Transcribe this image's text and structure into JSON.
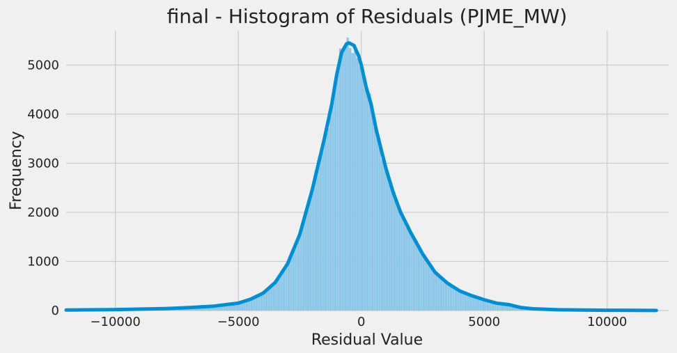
{
  "chart_data": {
    "type": "bar",
    "title": "final - Histogram of Residuals (PJME_MW)",
    "xlabel": "Residual Value",
    "ylabel": "Frequency",
    "xlim": [
      -12000,
      12500
    ],
    "ylim": [
      0,
      5700
    ],
    "xticks": [
      -10000,
      -5000,
      0,
      5000,
      10000
    ],
    "xtick_labels": [
      "−10000",
      "−5000",
      "0",
      "5000",
      "10000"
    ],
    "yticks": [
      0,
      1000,
      2000,
      3000,
      4000,
      5000
    ],
    "ytick_labels": [
      "0",
      "1000",
      "2000",
      "3000",
      "4000",
      "5000"
    ],
    "grid": true,
    "colors": {
      "bar": "#8ec8e8",
      "kde": "#008fd5",
      "grid": "#cbcbcb",
      "background": "#f0f0f0"
    },
    "kde_points": [
      [
        -12000,
        10
      ],
      [
        -10000,
        20
      ],
      [
        -8000,
        40
      ],
      [
        -7000,
        60
      ],
      [
        -6000,
        90
      ],
      [
        -5000,
        150
      ],
      [
        -4500,
        230
      ],
      [
        -4000,
        350
      ],
      [
        -3500,
        570
      ],
      [
        -3000,
        950
      ],
      [
        -2500,
        1550
      ],
      [
        -2000,
        2450
      ],
      [
        -1500,
        3500
      ],
      [
        -1200,
        4200
      ],
      [
        -1000,
        4800
      ],
      [
        -800,
        5250
      ],
      [
        -600,
        5430
      ],
      [
        -500,
        5450
      ],
      [
        -300,
        5400
      ],
      [
        -100,
        5180
      ],
      [
        0,
        5000
      ],
      [
        200,
        4550
      ],
      [
        400,
        4200
      ],
      [
        600,
        3700
      ],
      [
        800,
        3300
      ],
      [
        1000,
        2900
      ],
      [
        1300,
        2400
      ],
      [
        1600,
        2000
      ],
      [
        2000,
        1600
      ],
      [
        2500,
        1150
      ],
      [
        3000,
        780
      ],
      [
        3500,
        560
      ],
      [
        4000,
        400
      ],
      [
        4500,
        300
      ],
      [
        5000,
        220
      ],
      [
        5500,
        150
      ],
      [
        6000,
        120
      ],
      [
        6500,
        60
      ],
      [
        7000,
        35
      ],
      [
        8000,
        15
      ],
      [
        10000,
        6
      ],
      [
        12000,
        2
      ]
    ]
  }
}
